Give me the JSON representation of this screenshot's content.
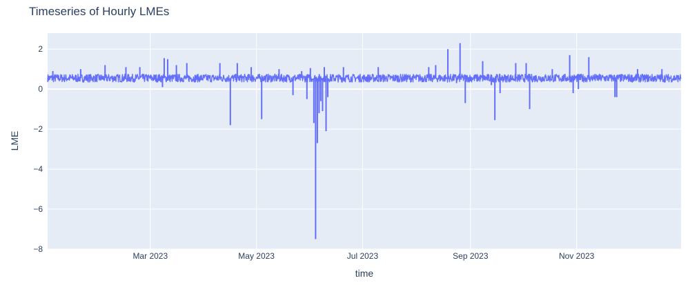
{
  "chart_data": {
    "type": "line",
    "title": "Timeseries of Hourly LMEs",
    "xlabel": "time",
    "ylabel": "LME",
    "xlim": [
      "2023-01-01",
      "2023-12-31"
    ],
    "ylim": [
      -8,
      2.8
    ],
    "xticks": [
      {
        "date": "2023-03-01",
        "label": "Mar 2023"
      },
      {
        "date": "2023-05-01",
        "label": "May 2023"
      },
      {
        "date": "2023-07-01",
        "label": "Jul 2023"
      },
      {
        "date": "2023-09-01",
        "label": "Sep 2023"
      },
      {
        "date": "2023-11-01",
        "label": "Nov 2023"
      }
    ],
    "yticks": [
      {
        "value": 2,
        "label": "2"
      },
      {
        "value": 0,
        "label": "0"
      },
      {
        "value": -2,
        "label": "−2"
      },
      {
        "value": -4,
        "label": "−4"
      },
      {
        "value": -6,
        "label": "−6"
      },
      {
        "value": -8,
        "label": "−8"
      }
    ],
    "grid": true,
    "baseline": 0.55,
    "noise_amplitude": 0.2,
    "spikes": [
      {
        "date": "2023-01-04",
        "value": 0.9
      },
      {
        "date": "2023-01-20",
        "value": 1.0
      },
      {
        "date": "2023-02-03",
        "value": 1.2
      },
      {
        "date": "2023-02-15",
        "value": 1.1
      },
      {
        "date": "2023-02-23",
        "value": 1.1
      },
      {
        "date": "2023-03-08",
        "value": 0.1
      },
      {
        "date": "2023-03-09",
        "value": 1.55
      },
      {
        "date": "2023-03-11",
        "value": 1.5
      },
      {
        "date": "2023-03-16",
        "value": 1.2
      },
      {
        "date": "2023-03-22",
        "value": 1.3
      },
      {
        "date": "2023-04-10",
        "value": 1.3
      },
      {
        "date": "2023-04-16",
        "value": -1.8
      },
      {
        "date": "2023-04-20",
        "value": 1.3
      },
      {
        "date": "2023-04-28",
        "value": 1.1
      },
      {
        "date": "2023-05-04",
        "value": -1.5
      },
      {
        "date": "2023-05-14",
        "value": 1.0
      },
      {
        "date": "2023-05-22",
        "value": -0.3
      },
      {
        "date": "2023-05-27",
        "value": 0.9
      },
      {
        "date": "2023-05-30",
        "value": -0.5
      },
      {
        "date": "2023-06-01",
        "value": 1.05
      },
      {
        "date": "2023-06-03",
        "value": -1.7
      },
      {
        "date": "2023-06-04",
        "value": -7.5
      },
      {
        "date": "2023-06-05",
        "value": -2.7
      },
      {
        "date": "2023-06-06",
        "value": -1.2
      },
      {
        "date": "2023-06-07",
        "value": -0.6
      },
      {
        "date": "2023-06-08",
        "value": -1.1
      },
      {
        "date": "2023-06-09",
        "value": 1.1
      },
      {
        "date": "2023-06-10",
        "value": -2.1
      },
      {
        "date": "2023-06-11",
        "value": -0.4
      },
      {
        "date": "2023-06-20",
        "value": 1.1
      },
      {
        "date": "2023-07-10",
        "value": 1.1
      },
      {
        "date": "2023-08-08",
        "value": 1.1
      },
      {
        "date": "2023-08-12",
        "value": 1.2
      },
      {
        "date": "2023-08-19",
        "value": 2.0
      },
      {
        "date": "2023-08-24",
        "value": 0.3
      },
      {
        "date": "2023-08-26",
        "value": 2.3
      },
      {
        "date": "2023-08-29",
        "value": -0.7
      },
      {
        "date": "2023-09-08",
        "value": 1.4
      },
      {
        "date": "2023-09-13",
        "value": 0.2
      },
      {
        "date": "2023-09-15",
        "value": -1.55
      },
      {
        "date": "2023-09-18",
        "value": -0.2
      },
      {
        "date": "2023-09-27",
        "value": 1.3
      },
      {
        "date": "2023-10-03",
        "value": 1.3
      },
      {
        "date": "2023-10-05",
        "value": -1.0
      },
      {
        "date": "2023-10-18",
        "value": 1.0
      },
      {
        "date": "2023-10-28",
        "value": 1.7
      },
      {
        "date": "2023-10-30",
        "value": -0.2
      },
      {
        "date": "2023-11-02",
        "value": 0.0
      },
      {
        "date": "2023-11-08",
        "value": 1.6
      },
      {
        "date": "2023-11-23",
        "value": -0.4
      },
      {
        "date": "2023-11-24",
        "value": -0.4
      },
      {
        "date": "2023-12-06",
        "value": 1.0
      },
      {
        "date": "2023-12-20",
        "value": 1.0
      }
    ]
  },
  "colors": {
    "line": "#636efa",
    "plot_bg": "#e5ecf6",
    "grid": "#ffffff",
    "text": "#2a3f5f"
  }
}
